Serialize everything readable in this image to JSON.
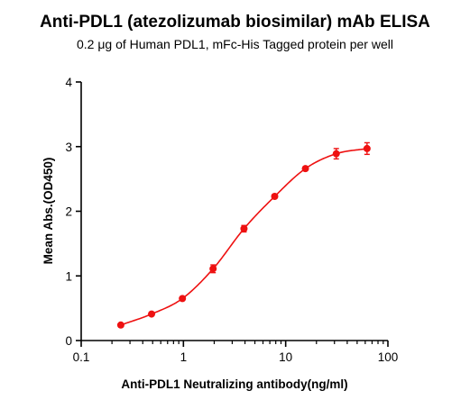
{
  "chart_data": {
    "type": "scatter",
    "title": "Anti-PDL1 (atezolizumab biosimilar) mAb ELISA",
    "subtitle": "0.2 μg of Human PDL1, mFc-His Tagged protein per well",
    "xlabel": "Anti-PDL1 Neutralizing antibody(ng/ml)",
    "ylabel": "Mean Abs.(OD450)",
    "x_scale": "log",
    "xlim": [
      0.1,
      100
    ],
    "ylim": [
      0,
      4
    ],
    "x_ticks": [
      0.1,
      1,
      10,
      100
    ],
    "x_tick_labels": [
      "0.1",
      "1",
      "10",
      "100"
    ],
    "y_ticks": [
      0,
      1,
      2,
      3,
      4
    ],
    "y_tick_labels": [
      "0",
      "1",
      "2",
      "3",
      "4"
    ],
    "grid": false,
    "series": [
      {
        "color": "#ee1111",
        "x": [
          0.244,
          0.488,
          0.977,
          1.95,
          3.91,
          7.81,
          15.6,
          31.25,
          62.5
        ],
        "y": [
          0.24,
          0.41,
          0.65,
          1.11,
          1.73,
          2.23,
          2.66,
          2.89,
          2.97
        ],
        "error": [
          0.02,
          0.02,
          0.02,
          0.06,
          0.05,
          0.03,
          0.03,
          0.08,
          0.09
        ],
        "fit_curve": "4PL"
      }
    ]
  }
}
